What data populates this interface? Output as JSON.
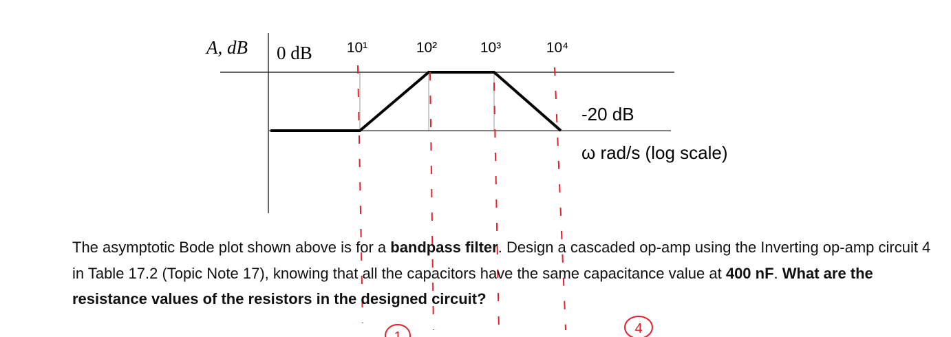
{
  "plot": {
    "y_label": "A, dB",
    "zero_label": "0 dB",
    "x_ticks": [
      "10¹",
      "10²",
      "10³",
      "10⁴"
    ],
    "level_label": "-20 dB",
    "x_label": "ω rad/s (log scale)"
  },
  "question": {
    "segments": [
      {
        "text": "The asymptotic Bode plot shown above is for a ",
        "bold": false
      },
      {
        "text": "bandpass filter",
        "bold": true
      },
      {
        "text": ". Design a cascaded op-amp using the Inverting op-amp circuit 4 in Table 17.2 (Topic Note 17), knowing that all the capacitors have the same capacitance value at ",
        "bold": false
      },
      {
        "text": "400 nF",
        "bold": true
      },
      {
        "text": ". ",
        "bold": false
      },
      {
        "text": "What are the resistance values of the resistors in the designed circuit?",
        "bold": true
      }
    ]
  },
  "annotations": [
    "1",
    "4"
  ]
}
